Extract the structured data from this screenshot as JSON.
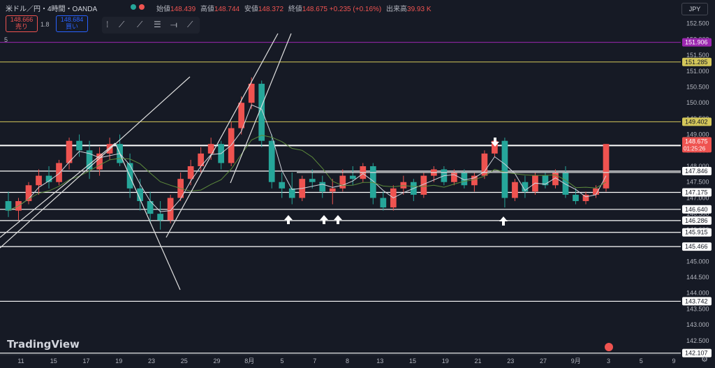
{
  "header": {
    "symbol": "米ドル／円・4時間・OANDA",
    "open_label": "始値",
    "open": "148.439",
    "high_label": "高値",
    "high": "148.744",
    "low_label": "安値",
    "low": "148.372",
    "close_label": "終値",
    "close": "148.675",
    "change": "+0.235 (+0.16%)",
    "volume_label": "出来高",
    "volume": "39.93 K"
  },
  "trade": {
    "sell_price": "148.666",
    "sell_label": "売り",
    "spread": "1.8",
    "buy_price": "148.684",
    "buy_label": "買い"
  },
  "indicator_label": "5",
  "currency": "JPY",
  "branding": "TradingView",
  "colors": {
    "bg": "#161a25",
    "up": "#ef5350",
    "down": "#26a69a",
    "ma_fast": "#d1d4dc",
    "ma_slow": "#5d8a3c",
    "purple": "#9c27b0",
    "yellow": "#d4c75a",
    "white": "#ffffff"
  },
  "chart_data": {
    "type": "candlestick",
    "y_axis_ticks": [
      "152.500",
      "152.000",
      "151.500",
      "151.000",
      "150.500",
      "150.000",
      "149.500",
      "149.000",
      "148.500",
      "148.000",
      "147.500",
      "147.000",
      "146.500",
      "146.000",
      "145.500",
      "145.000",
      "144.500",
      "144.000",
      "143.500",
      "143.000",
      "142.500"
    ],
    "ylim": [
      142.1,
      152.8
    ],
    "x_axis_labels": [
      "11",
      "15",
      "17",
      "19",
      "23",
      "25",
      "29",
      "8月",
      "5",
      "7",
      "8",
      "13",
      "15",
      "19",
      "21",
      "23",
      "27",
      "9月",
      "3",
      "5",
      "9"
    ],
    "horizontal_levels": [
      {
        "value": 151.906,
        "color": "purple"
      },
      {
        "value": 151.285,
        "color": "yellow"
      },
      {
        "value": 149.402,
        "color": "yellow"
      },
      {
        "value": 148.652,
        "color": "white"
      },
      {
        "value": 147.846,
        "color": "white"
      },
      {
        "value": 147.175,
        "color": "white"
      },
      {
        "value": 146.64,
        "color": "white"
      },
      {
        "value": 146.286,
        "color": "white"
      },
      {
        "value": 145.915,
        "color": "white"
      },
      {
        "value": 145.466,
        "color": "white"
      },
      {
        "value": 143.742,
        "color": "white"
      },
      {
        "value": 142.107,
        "color": "white"
      }
    ],
    "current_price": "148.675",
    "countdown": "01:25:26",
    "arrows": [
      {
        "dir": "up",
        "index": 1
      },
      {
        "dir": "up",
        "index": 2
      },
      {
        "dir": "up",
        "index": 3
      },
      {
        "dir": "down",
        "index": 4
      },
      {
        "dir": "up",
        "index": 5
      }
    ],
    "series": [
      {
        "ohlc": [
          [
            146.9,
            147.2,
            146.4,
            146.6
          ],
          [
            146.6,
            147.0,
            146.3,
            146.9
          ],
          [
            146.9,
            147.5,
            146.8,
            147.4
          ],
          [
            147.4,
            147.9,
            147.1,
            147.7
          ],
          [
            147.7,
            148.0,
            147.3,
            147.5
          ],
          [
            147.5,
            148.2,
            147.4,
            148.1
          ],
          [
            148.1,
            148.9,
            147.9,
            148.8
          ],
          [
            148.8,
            149.0,
            148.3,
            148.5
          ],
          [
            148.5,
            148.8,
            147.6,
            147.9
          ],
          [
            147.9,
            148.6,
            147.7,
            148.4
          ],
          [
            148.4,
            148.9,
            148.2,
            148.7
          ],
          [
            148.7,
            149.0,
            148.0,
            148.1
          ],
          [
            148.1,
            148.4,
            147.0,
            147.3
          ],
          [
            147.3,
            147.6,
            146.6,
            146.9
          ],
          [
            146.9,
            147.2,
            146.2,
            146.5
          ],
          [
            146.5,
            146.9,
            146.0,
            146.3
          ],
          [
            146.3,
            147.1,
            146.2,
            147.0
          ],
          [
            147.0,
            147.8,
            146.9,
            147.6
          ],
          [
            147.6,
            148.2,
            147.4,
            148.0
          ],
          [
            148.0,
            148.6,
            147.8,
            148.4
          ],
          [
            148.4,
            148.9,
            148.2,
            148.7
          ],
          [
            148.7,
            148.8,
            147.9,
            148.1
          ],
          [
            148.1,
            149.4,
            148.0,
            149.2
          ],
          [
            149.2,
            150.2,
            149.0,
            150.0
          ],
          [
            150.0,
            150.8,
            149.8,
            150.6
          ],
          [
            150.6,
            150.7,
            148.6,
            148.8
          ],
          [
            148.8,
            149.0,
            147.3,
            147.5
          ],
          [
            147.5,
            147.8,
            147.0,
            147.3
          ],
          [
            147.3,
            147.8,
            146.8,
            147.0
          ],
          [
            147.0,
            147.7,
            146.9,
            147.6
          ],
          [
            147.6,
            147.9,
            147.3,
            147.5
          ],
          [
            147.5,
            147.7,
            147.0,
            147.2
          ],
          [
            147.2,
            147.6,
            146.8,
            147.3
          ],
          [
            147.3,
            147.9,
            147.2,
            147.7
          ],
          [
            147.7,
            148.0,
            147.4,
            147.6
          ],
          [
            147.6,
            148.1,
            147.5,
            148.0
          ],
          [
            148.0,
            148.1,
            146.8,
            147.0
          ],
          [
            147.0,
            147.2,
            146.6,
            146.7
          ],
          [
            146.7,
            147.4,
            146.6,
            147.3
          ],
          [
            147.3,
            147.7,
            147.1,
            147.5
          ],
          [
            147.5,
            147.6,
            146.9,
            147.1
          ],
          [
            147.1,
            147.8,
            147.0,
            147.7
          ],
          [
            147.7,
            148.0,
            147.5,
            147.9
          ],
          [
            147.9,
            148.0,
            147.4,
            147.5
          ],
          [
            147.5,
            147.9,
            147.4,
            147.8
          ],
          [
            147.8,
            147.9,
            147.3,
            147.4
          ],
          [
            147.4,
            147.8,
            147.2,
            147.7
          ],
          [
            147.7,
            148.5,
            147.6,
            148.4
          ],
          [
            148.4,
            148.9,
            148.3,
            148.8
          ],
          [
            148.8,
            148.9,
            146.7,
            147.0
          ],
          [
            147.0,
            147.6,
            146.9,
            147.5
          ],
          [
            147.5,
            147.7,
            147.0,
            147.2
          ],
          [
            147.2,
            147.8,
            147.1,
            147.7
          ],
          [
            147.7,
            147.8,
            147.3,
            147.4
          ],
          [
            147.4,
            147.9,
            147.3,
            147.8
          ],
          [
            147.8,
            148.0,
            147.0,
            147.1
          ],
          [
            147.1,
            147.3,
            146.8,
            146.9
          ],
          [
            146.9,
            147.2,
            146.8,
            147.1
          ],
          [
            147.1,
            147.4,
            147.0,
            147.3
          ],
          [
            147.3,
            148.7,
            147.2,
            148.7
          ]
        ]
      }
    ]
  }
}
